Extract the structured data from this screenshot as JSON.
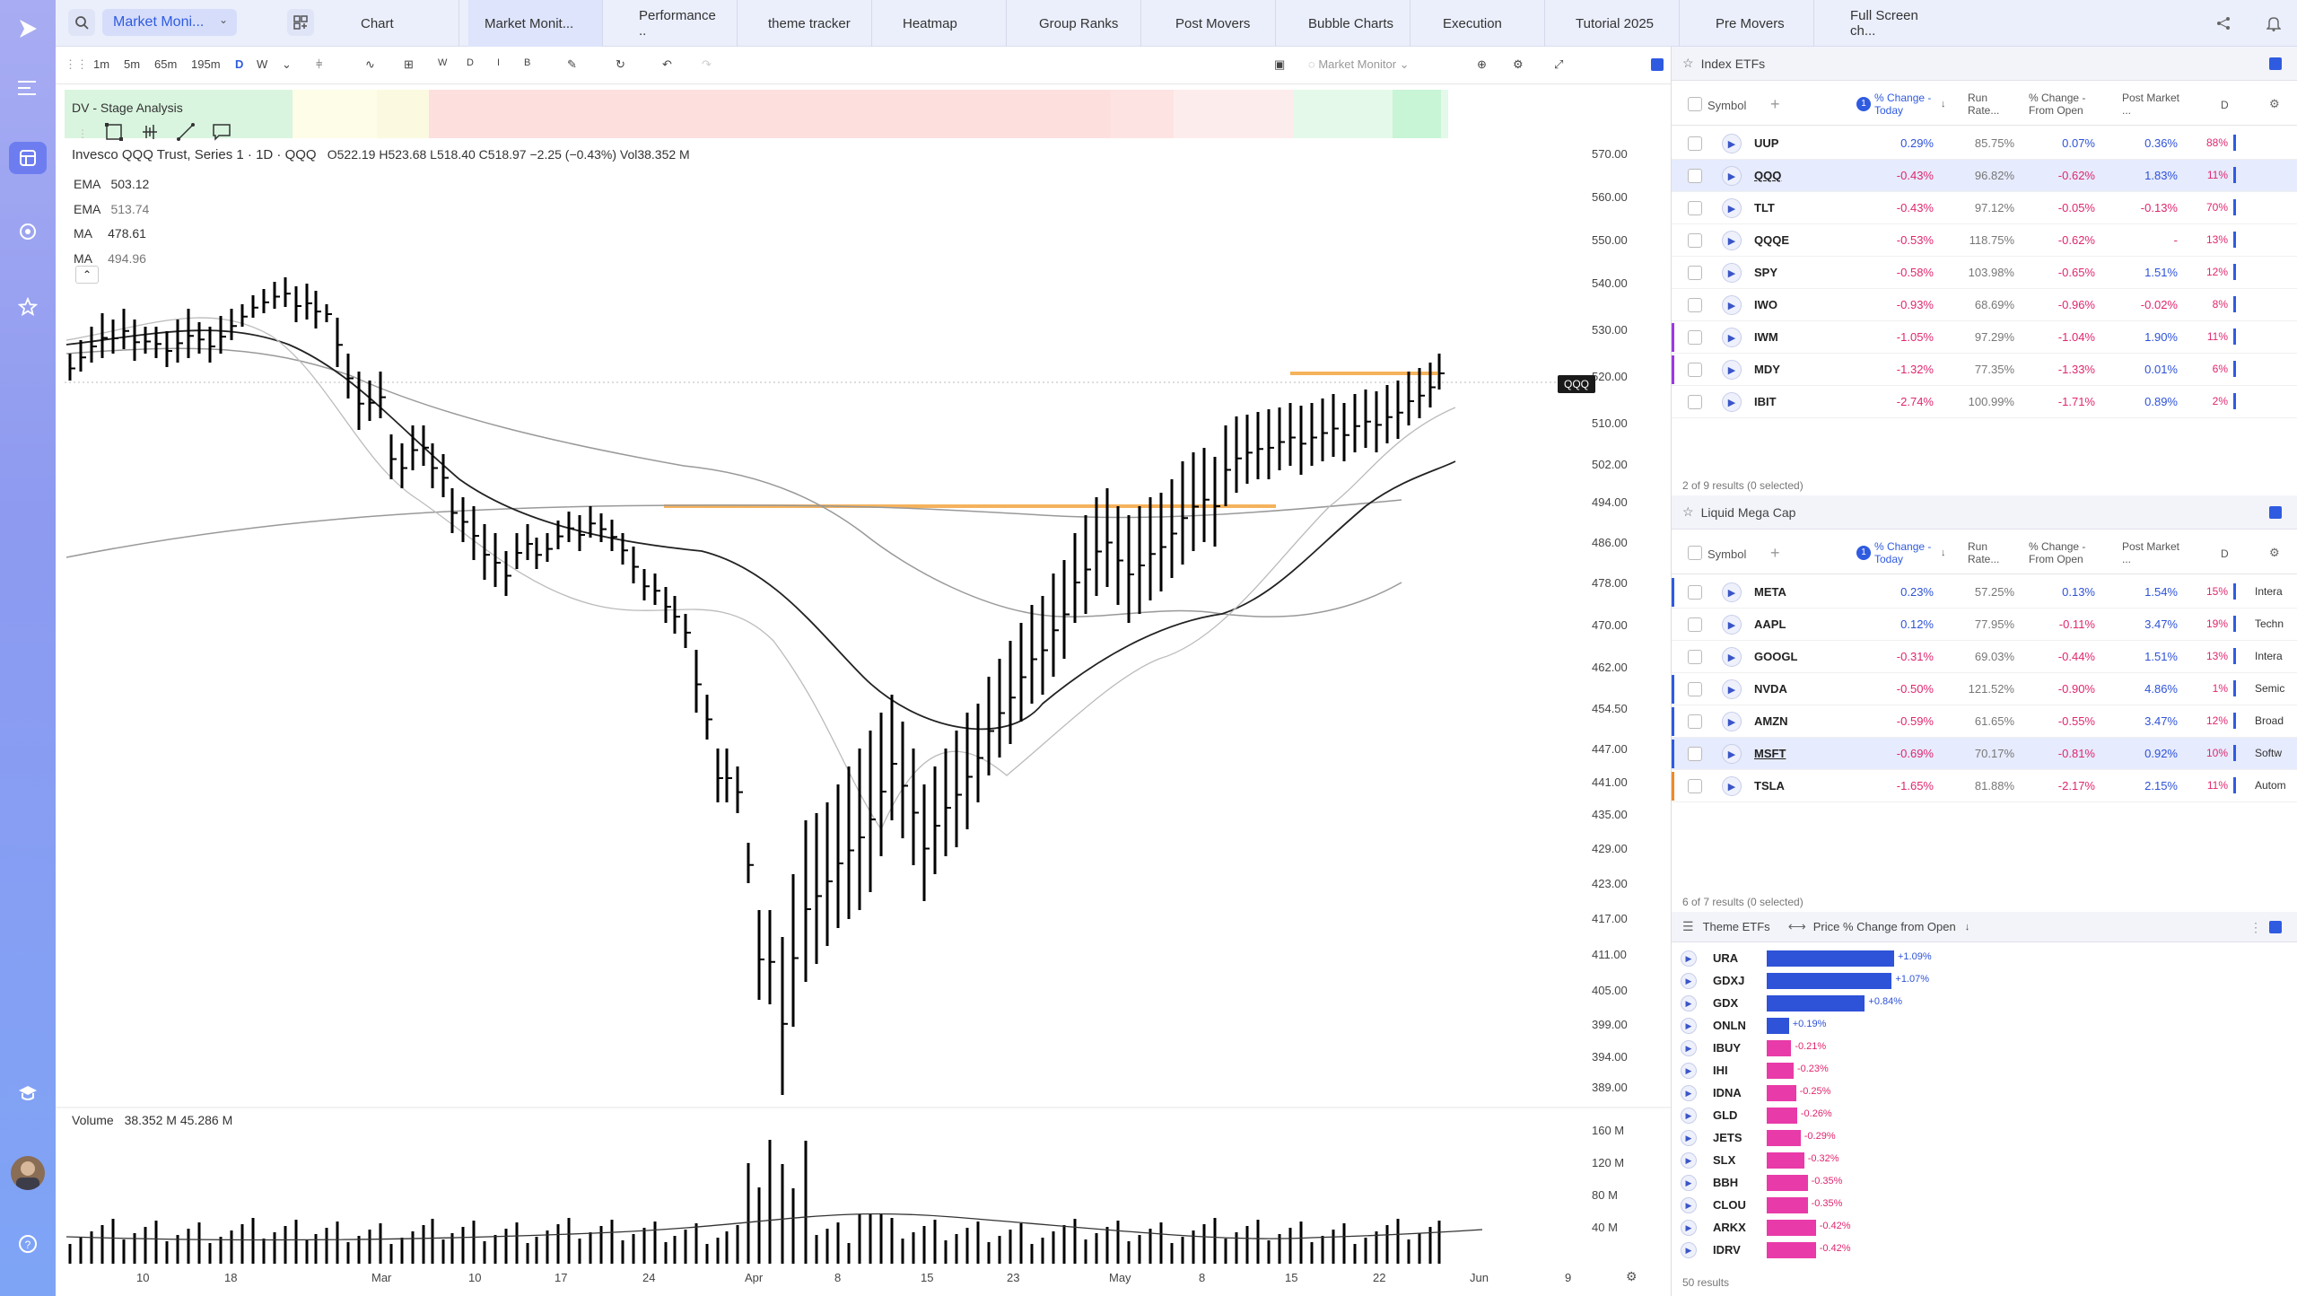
{
  "topbar": {
    "active_dropdown": "Market Moni...",
    "tabs": [
      "Chart",
      "Market Monit...",
      "Performance ..",
      "theme tracker",
      "Heatmap",
      "Group Ranks",
      "Post Movers",
      "Bubble Charts",
      "Execution",
      "Tutorial 2025",
      "Pre Movers",
      "Full Screen ch..."
    ]
  },
  "toolbar": {
    "intervals": [
      "1m",
      "5m",
      "65m",
      "195m",
      "D",
      "W"
    ],
    "chart_types": [
      "W",
      "D",
      "I",
      "B"
    ],
    "layout_label": "Market Monitor"
  },
  "chart": {
    "stage_label": "DV - Stage Analysis",
    "title": "Invesco QQQ Trust, Series 1 · 1D · QQQ",
    "ohlc": "O522.19  H523.68  L518.40  C518.97  −2.25 (−0.43%)  Vol38.352 M",
    "indicators": [
      {
        "name": "EMA",
        "value": "503.12"
      },
      {
        "name": "EMA",
        "value": "513.74"
      },
      {
        "name": "MA",
        "value": "478.61"
      },
      {
        "name": "MA",
        "value": "494.96"
      }
    ],
    "price_labels": [
      "570.00",
      "560.00",
      "550.00",
      "540.00",
      "530.00",
      "520.00",
      "510.00",
      "502.00",
      "494.00",
      "486.00",
      "478.00",
      "470.00",
      "462.00",
      "454.50",
      "447.00",
      "441.00",
      "435.00",
      "429.00",
      "423.00",
      "417.00",
      "411.00",
      "405.00",
      "399.00",
      "394.00",
      "389.00"
    ],
    "current_price_tag": "QQQ",
    "volume_label": "Volume",
    "volume_values": "38.352 M  45.286 M",
    "volume_labels": [
      "160 M",
      "120 M",
      "80 M",
      "40 M"
    ],
    "x_labels": [
      "10",
      "18",
      "Mar",
      "10",
      "17",
      "24",
      "Apr",
      "8",
      "15",
      "23",
      "May",
      "8",
      "15",
      "22",
      "Jun",
      "9"
    ]
  },
  "index_etfs": {
    "title": "Index ETFs",
    "columns": [
      "Symbol",
      "% Change - Today",
      "Run Rate...",
      "% Change - From Open",
      "Post Market ...",
      "D"
    ],
    "badge": "1",
    "rows": [
      {
        "symbol": "UUP",
        "chg": "0.29%",
        "run": "85.75%",
        "open": "0.07%",
        "post": "0.36%",
        "d": "88%"
      },
      {
        "symbol": "QQQ",
        "chg": "-0.43%",
        "run": "96.82%",
        "open": "-0.62%",
        "post": "1.83%",
        "d": "11%"
      },
      {
        "symbol": "TLT",
        "chg": "-0.43%",
        "run": "97.12%",
        "open": "-0.05%",
        "post": "-0.13%",
        "d": "70%"
      },
      {
        "symbol": "QQQE",
        "chg": "-0.53%",
        "run": "118.75%",
        "open": "-0.62%",
        "post": "-",
        "d": "13%"
      },
      {
        "symbol": "SPY",
        "chg": "-0.58%",
        "run": "103.98%",
        "open": "-0.65%",
        "post": "1.51%",
        "d": "12%"
      },
      {
        "symbol": "IWO",
        "chg": "-0.93%",
        "run": "68.69%",
        "open": "-0.96%",
        "post": "-0.02%",
        "d": "8%"
      },
      {
        "symbol": "IWM",
        "chg": "-1.05%",
        "run": "97.29%",
        "open": "-1.04%",
        "post": "1.90%",
        "d": "11%"
      },
      {
        "symbol": "MDY",
        "chg": "-1.32%",
        "run": "77.35%",
        "open": "-1.33%",
        "post": "0.01%",
        "d": "6%"
      },
      {
        "symbol": "IBIT",
        "chg": "-2.74%",
        "run": "100.99%",
        "open": "-1.71%",
        "post": "0.89%",
        "d": "2%"
      }
    ],
    "footer": "2 of 9 results (0 selected)"
  },
  "mega_cap": {
    "title": "Liquid Mega Cap",
    "columns": [
      "Symbol",
      "% Change - Today",
      "Run Rate...",
      "% Change - From Open",
      "Post Market ...",
      "D"
    ],
    "badge": "1",
    "rows": [
      {
        "symbol": "META",
        "chg": "0.23%",
        "run": "57.25%",
        "open": "0.13%",
        "post": "1.54%",
        "d": "15%",
        "sector": "Intera"
      },
      {
        "symbol": "AAPL",
        "chg": "0.12%",
        "run": "77.95%",
        "open": "-0.11%",
        "post": "3.47%",
        "d": "19%",
        "sector": "Techn"
      },
      {
        "symbol": "GOOGL",
        "chg": "-0.31%",
        "run": "69.03%",
        "open": "-0.44%",
        "post": "1.51%",
        "d": "13%",
        "sector": "Intera"
      },
      {
        "symbol": "NVDA",
        "chg": "-0.50%",
        "run": "121.52%",
        "open": "-0.90%",
        "post": "4.86%",
        "d": "1%",
        "sector": "Semic"
      },
      {
        "symbol": "AMZN",
        "chg": "-0.59%",
        "run": "61.65%",
        "open": "-0.55%",
        "post": "3.47%",
        "d": "12%",
        "sector": "Broad"
      },
      {
        "symbol": "MSFT",
        "chg": "-0.69%",
        "run": "70.17%",
        "open": "-0.81%",
        "post": "0.92%",
        "d": "10%",
        "sector": "Softw"
      },
      {
        "symbol": "TSLA",
        "chg": "-1.65%",
        "run": "81.88%",
        "open": "-2.17%",
        "post": "2.15%",
        "d": "11%",
        "sector": "Autom"
      }
    ],
    "footer": "6 of 7 results (0 selected)"
  },
  "theme_etfs": {
    "title": "Theme ETFs",
    "sort_label": "Price % Change from Open",
    "rows": [
      {
        "symbol": "URA",
        "value": 1.09,
        "label": "+1.09%"
      },
      {
        "symbol": "GDXJ",
        "value": 1.07,
        "label": "+1.07%"
      },
      {
        "symbol": "GDX",
        "value": 0.84,
        "label": "+0.84%"
      },
      {
        "symbol": "ONLN",
        "value": 0.19,
        "label": "+0.19%"
      },
      {
        "symbol": "IBUY",
        "value": -0.21,
        "label": "-0.21%"
      },
      {
        "symbol": "IHI",
        "value": -0.23,
        "label": "-0.23%"
      },
      {
        "symbol": "IDNA",
        "value": -0.25,
        "label": "-0.25%"
      },
      {
        "symbol": "GLD",
        "value": -0.26,
        "label": "-0.26%"
      },
      {
        "symbol": "JETS",
        "value": -0.29,
        "label": "-0.29%"
      },
      {
        "symbol": "SLX",
        "value": -0.32,
        "label": "-0.32%"
      },
      {
        "symbol": "BBH",
        "value": -0.35,
        "label": "-0.35%"
      },
      {
        "symbol": "CLOU",
        "value": -0.35,
        "label": "-0.35%"
      },
      {
        "symbol": "ARKX",
        "value": -0.42,
        "label": "-0.42%"
      },
      {
        "symbol": "IDRV",
        "value": -0.42,
        "label": "-0.42%"
      }
    ],
    "footer": "50 results"
  },
  "colors": {
    "positive": "#2e52d8",
    "negative": "#e0266e",
    "accent": "#2f5be0",
    "highlight": "#f5b25c"
  }
}
